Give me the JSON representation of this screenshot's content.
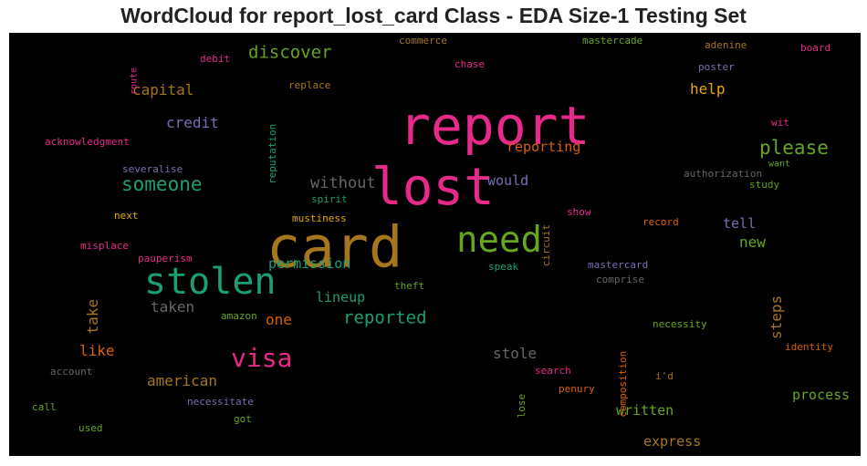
{
  "chart_data": {
    "type": "wordcloud",
    "title": "WordCloud for report_lost_card Class - EDA Size-1 Testing Set",
    "background": "#000000",
    "words": [
      {
        "text": "report",
        "color": "#e7298a"
      },
      {
        "text": "lost",
        "color": "#e7298a"
      },
      {
        "text": "card",
        "color": "#a6761d"
      },
      {
        "text": "need",
        "color": "#66a61e"
      },
      {
        "text": "stolen",
        "color": "#1b9e77"
      },
      {
        "text": "visa",
        "color": "#e7298a"
      },
      {
        "text": "someone",
        "color": "#1b9e77"
      },
      {
        "text": "please",
        "color": "#66a61e"
      },
      {
        "text": "discover",
        "color": "#66a61e"
      },
      {
        "text": "reported",
        "color": "#1b9e77"
      },
      {
        "text": "capital",
        "color": "#a6761d"
      },
      {
        "text": "credit",
        "color": "#7570b3"
      },
      {
        "text": "without",
        "color": "#666666"
      },
      {
        "text": "reporting",
        "color": "#d95f02"
      },
      {
        "text": "would",
        "color": "#7570b3"
      },
      {
        "text": "help",
        "color": "#e6ab02"
      },
      {
        "text": "tell",
        "color": "#7570b3"
      },
      {
        "text": "new",
        "color": "#66a61e"
      },
      {
        "text": "permission",
        "color": "#1b9e77"
      },
      {
        "text": "lineup",
        "color": "#1b9e77"
      },
      {
        "text": "one",
        "color": "#d95f02"
      },
      {
        "text": "taken",
        "color": "#666666"
      },
      {
        "text": "take",
        "color": "#a6761d"
      },
      {
        "text": "like",
        "color": "#d95f02"
      },
      {
        "text": "american",
        "color": "#a6761d"
      },
      {
        "text": "stole",
        "color": "#666666"
      },
      {
        "text": "steps",
        "color": "#a6761d"
      },
      {
        "text": "process",
        "color": "#66a61e"
      },
      {
        "text": "written",
        "color": "#66a61e"
      },
      {
        "text": "express",
        "color": "#a6761d"
      },
      {
        "text": "route",
        "color": "#e7298a"
      },
      {
        "text": "debit",
        "color": "#e7298a"
      },
      {
        "text": "commerce",
        "color": "#a6761d"
      },
      {
        "text": "mastercade",
        "color": "#66a61e"
      },
      {
        "text": "adenine",
        "color": "#a6761d"
      },
      {
        "text": "board",
        "color": "#e7298a"
      },
      {
        "text": "chase",
        "color": "#e7298a"
      },
      {
        "text": "poster",
        "color": "#7570b3"
      },
      {
        "text": "reputation",
        "color": "#1b9e77"
      },
      {
        "text": "replace",
        "color": "#a6761d"
      },
      {
        "text": "wit",
        "color": "#e7298a"
      },
      {
        "text": "acknowledgment",
        "color": "#e7298a"
      },
      {
        "text": "want",
        "color": "#66a61e"
      },
      {
        "text": "severalise",
        "color": "#7570b3"
      },
      {
        "text": "authorization",
        "color": "#666666"
      },
      {
        "text": "spirit",
        "color": "#1b9e77"
      },
      {
        "text": "study",
        "color": "#66a61e"
      },
      {
        "text": "circuit",
        "color": "#a6761d"
      },
      {
        "text": "next",
        "color": "#e6ab02"
      },
      {
        "text": "mustiness",
        "color": "#e6ab02"
      },
      {
        "text": "show",
        "color": "#e7298a"
      },
      {
        "text": "record",
        "color": "#d95f02"
      },
      {
        "text": "misplace",
        "color": "#e7298a"
      },
      {
        "text": "pauperism",
        "color": "#e7298a"
      },
      {
        "text": "speak",
        "color": "#1b9e77"
      },
      {
        "text": "mastercard",
        "color": "#7570b3"
      },
      {
        "text": "theft",
        "color": "#66a61e"
      },
      {
        "text": "comprise",
        "color": "#666666"
      },
      {
        "text": "amazon",
        "color": "#66a61e"
      },
      {
        "text": "composition",
        "color": "#d95f02"
      },
      {
        "text": "necessity",
        "color": "#66a61e"
      },
      {
        "text": "identity",
        "color": "#d95f02"
      },
      {
        "text": "account",
        "color": "#666666"
      },
      {
        "text": "lose",
        "color": "#66a61e"
      },
      {
        "text": "search",
        "color": "#e7298a"
      },
      {
        "text": "i'd",
        "color": "#a6761d"
      },
      {
        "text": "call",
        "color": "#66a61e"
      },
      {
        "text": "necessitate",
        "color": "#7570b3"
      },
      {
        "text": "penury",
        "color": "#d95f02"
      },
      {
        "text": "got",
        "color": "#66a61e"
      },
      {
        "text": "used",
        "color": "#66a61e"
      }
    ]
  }
}
